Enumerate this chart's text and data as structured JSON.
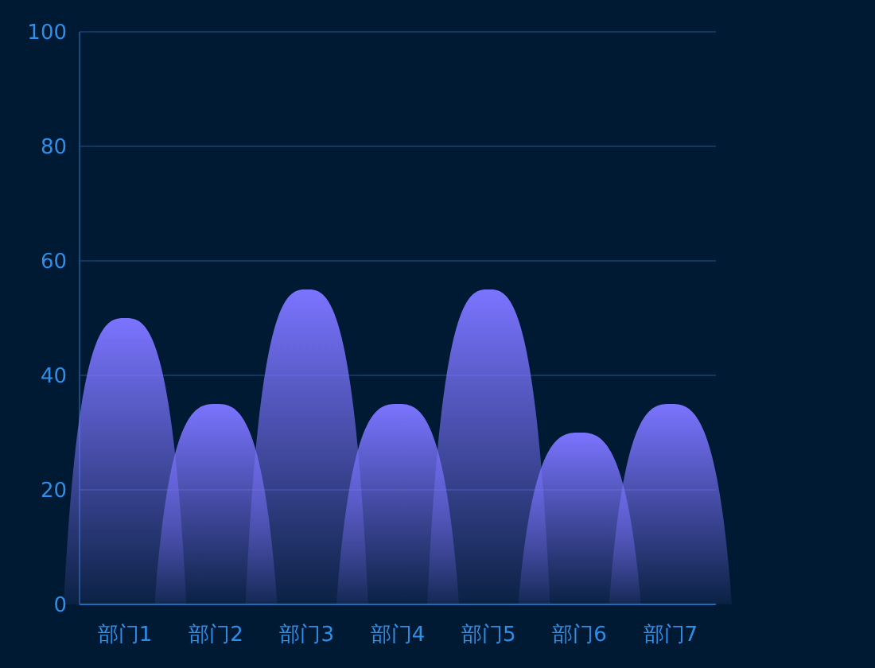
{
  "chart_data": {
    "type": "bar",
    "categories": [
      "部门1",
      "部门2",
      "部门3",
      "部门4",
      "部门5",
      "部门6",
      "部门7"
    ],
    "values": [
      50,
      35,
      55,
      35,
      55,
      30,
      35
    ],
    "color": "#7b74ff",
    "ylim": [
      0,
      100
    ],
    "yticks": [
      0,
      20,
      40,
      60,
      80,
      100
    ],
    "grid": "y"
  }
}
